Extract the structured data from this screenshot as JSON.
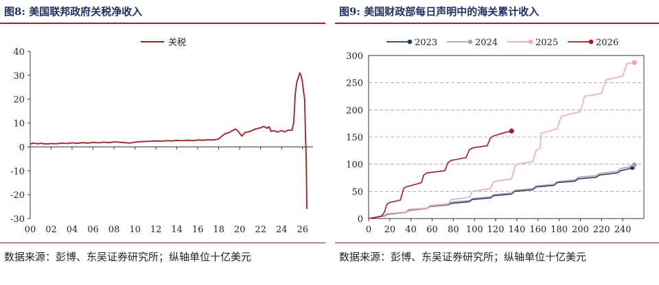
{
  "left": {
    "title": "图8:  美国联邦政府关税净收入",
    "source": "数据来源：彭博、东吴证券研究所；纵轴单位十亿美元",
    "chart_data": {
      "type": "line",
      "legend_position": "top-center",
      "ylim": [
        -30,
        40
      ],
      "yticks": [
        -30,
        -20,
        -10,
        0,
        10,
        20,
        30,
        40
      ],
      "xlim": [
        0,
        27
      ],
      "xticks": [
        0,
        2,
        4,
        6,
        8,
        10,
        12,
        14,
        16,
        18,
        20,
        22,
        24,
        26
      ],
      "xticklabels": [
        "00",
        "02",
        "04",
        "06",
        "08",
        "10",
        "12",
        "14",
        "16",
        "18",
        "20",
        "22",
        "24",
        "26"
      ],
      "grid": false,
      "color": "#b5121b",
      "series": [
        {
          "name": "关税",
          "points": [
            [
              0,
              1.2
            ],
            [
              0.3,
              1.6
            ],
            [
              0.7,
              1.3
            ],
            [
              1,
              1.5
            ],
            [
              1.5,
              1.2
            ],
            [
              2,
              1.4
            ],
            [
              2.5,
              1.3
            ],
            [
              3,
              1.6
            ],
            [
              3.5,
              1.4
            ],
            [
              4,
              1.7
            ],
            [
              4.5,
              1.5
            ],
            [
              5,
              1.8
            ],
            [
              5.5,
              1.6
            ],
            [
              6,
              1.9
            ],
            [
              6.5,
              1.7
            ],
            [
              7,
              2.0
            ],
            [
              7.5,
              1.8
            ],
            [
              8,
              2.1
            ],
            [
              8.5,
              2.0
            ],
            [
              9,
              1.8
            ],
            [
              9.5,
              1.6
            ],
            [
              10,
              2.0
            ],
            [
              10.5,
              2.2
            ],
            [
              11,
              2.3
            ],
            [
              11.5,
              2.4
            ],
            [
              12,
              2.5
            ],
            [
              12.5,
              2.4
            ],
            [
              13,
              2.6
            ],
            [
              13.5,
              2.5
            ],
            [
              14,
              2.7
            ],
            [
              14.5,
              2.6
            ],
            [
              15,
              2.8
            ],
            [
              15.5,
              2.6
            ],
            [
              16,
              2.9
            ],
            [
              16.5,
              2.8
            ],
            [
              17,
              3.0
            ],
            [
              17.5,
              2.9
            ],
            [
              18,
              3.3
            ],
            [
              18.3,
              4.5
            ],
            [
              18.6,
              5.5
            ],
            [
              19,
              6.0
            ],
            [
              19.3,
              6.8
            ],
            [
              19.6,
              7.5
            ],
            [
              19.9,
              6.3
            ],
            [
              20.2,
              4.5
            ],
            [
              20.5,
              6.0
            ],
            [
              21,
              6.5
            ],
            [
              21.5,
              7.5
            ],
            [
              22,
              8.0
            ],
            [
              22.3,
              8.6
            ],
            [
              22.6,
              7.8
            ],
            [
              22.8,
              8.5
            ],
            [
              23,
              6.5
            ],
            [
              23.3,
              6.8
            ],
            [
              23.6,
              6.2
            ],
            [
              24,
              6.8
            ],
            [
              24.3,
              6.3
            ],
            [
              24.6,
              7.0
            ],
            [
              25,
              7.0
            ],
            [
              25.15,
              10
            ],
            [
              25.3,
              22
            ],
            [
              25.45,
              27
            ],
            [
              25.6,
              29
            ],
            [
              25.75,
              31
            ],
            [
              25.85,
              30
            ],
            [
              26,
              27
            ],
            [
              26.1,
              23
            ],
            [
              26.2,
              20
            ],
            [
              26.28,
              5
            ],
            [
              26.35,
              -5
            ],
            [
              26.42,
              -26
            ]
          ]
        }
      ]
    }
  },
  "right": {
    "title": "图9:  美国财政部每日声明中的海关累计收入",
    "source": "数据来源：彭博、东吴证券研究所；纵轴单位十亿美元",
    "chart_data": {
      "type": "line",
      "legend_position": "top",
      "ylim": [
        0,
        300
      ],
      "yticks": [
        0,
        50,
        100,
        150,
        200,
        250,
        300
      ],
      "xlim": [
        0,
        260
      ],
      "xticks": [
        0,
        20,
        40,
        60,
        80,
        100,
        120,
        140,
        160,
        180,
        200,
        220,
        240
      ],
      "grid": true,
      "series": [
        {
          "name": "2023",
          "color": "#1f3a6e",
          "points": [
            [
              0,
              0
            ],
            [
              15,
              5
            ],
            [
              18,
              8
            ],
            [
              35,
              11
            ],
            [
              38,
              15
            ],
            [
              55,
              18
            ],
            [
              58,
              22
            ],
            [
              75,
              25
            ],
            [
              78,
              28
            ],
            [
              95,
              31
            ],
            [
              98,
              35
            ],
            [
              115,
              38
            ],
            [
              118,
              42
            ],
            [
              135,
              45
            ],
            [
              138,
              50
            ],
            [
              155,
              53
            ],
            [
              158,
              58
            ],
            [
              175,
              61
            ],
            [
              178,
              66
            ],
            [
              195,
              69
            ],
            [
              198,
              73
            ],
            [
              215,
              76
            ],
            [
              218,
              80
            ],
            [
              235,
              84
            ],
            [
              238,
              88
            ],
            [
              247,
              92
            ],
            [
              249,
              94
            ]
          ]
        },
        {
          "name": "2024",
          "color": "#a6a6a6",
          "points": [
            [
              0,
              0
            ],
            [
              15,
              6
            ],
            [
              18,
              9
            ],
            [
              35,
              12
            ],
            [
              38,
              17
            ],
            [
              55,
              19
            ],
            [
              58,
              24
            ],
            [
              75,
              27
            ],
            [
              78,
              30
            ],
            [
              95,
              33
            ],
            [
              98,
              37
            ],
            [
              115,
              40
            ],
            [
              118,
              44
            ],
            [
              135,
              47
            ],
            [
              138,
              52
            ],
            [
              155,
              55
            ],
            [
              158,
              60
            ],
            [
              175,
              63
            ],
            [
              178,
              68
            ],
            [
              195,
              71
            ],
            [
              198,
              76
            ],
            [
              215,
              79
            ],
            [
              218,
              83
            ],
            [
              235,
              87
            ],
            [
              238,
              92
            ],
            [
              247,
              95
            ],
            [
              251,
              99
            ]
          ]
        },
        {
          "name": "2025",
          "color": "#f4a5b0",
          "points": [
            [
              0,
              0
            ],
            [
              15,
              6
            ],
            [
              18,
              9
            ],
            [
              35,
              11
            ],
            [
              38,
              16
            ],
            [
              55,
              18
            ],
            [
              58,
              23
            ],
            [
              75,
              26
            ],
            [
              78,
              35
            ],
            [
              95,
              39
            ],
            [
              98,
              50
            ],
            [
              115,
              55
            ],
            [
              118,
              68
            ],
            [
              135,
              73
            ],
            [
              138,
              94
            ],
            [
              140,
              100
            ],
            [
              155,
              105
            ],
            [
              158,
              125
            ],
            [
              162,
              130
            ],
            [
              163,
              157
            ],
            [
              178,
              165
            ],
            [
              182,
              188
            ],
            [
              200,
              197
            ],
            [
              204,
              225
            ],
            [
              220,
              230
            ],
            [
              224,
              255
            ],
            [
              240,
              262
            ],
            [
              244,
              285
            ],
            [
              251,
              287
            ]
          ]
        },
        {
          "name": "2026",
          "color": "#b5121b",
          "points": [
            [
              0,
              0
            ],
            [
              12,
              4
            ],
            [
              15,
              12
            ],
            [
              17,
              25
            ],
            [
              19,
              29
            ],
            [
              30,
              34
            ],
            [
              33,
              55
            ],
            [
              35,
              58
            ],
            [
              50,
              66
            ],
            [
              52,
              80
            ],
            [
              55,
              84
            ],
            [
              72,
              88
            ],
            [
              75,
              103
            ],
            [
              78,
              107
            ],
            [
              92,
              112
            ],
            [
              95,
              126
            ],
            [
              98,
              130
            ],
            [
              112,
              134
            ],
            [
              115,
              148
            ],
            [
              118,
              152
            ],
            [
              128,
              158
            ],
            [
              135,
              161
            ]
          ]
        }
      ]
    }
  }
}
